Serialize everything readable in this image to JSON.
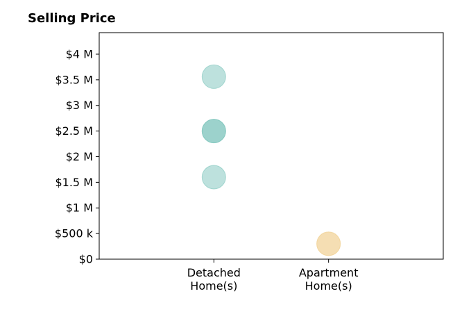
{
  "chart_data": {
    "type": "scatter",
    "title": "Selling Price",
    "xlabel": "",
    "ylabel": "",
    "categories": [
      [
        "Detached",
        "Home(s)"
      ],
      [
        "Apartment",
        "Home(s)"
      ]
    ],
    "y_ticks": [
      {
        "value": 0,
        "label": "$0"
      },
      {
        "value": 500000,
        "label": "$500 k"
      },
      {
        "value": 1000000,
        "label": "$1 M"
      },
      {
        "value": 1500000,
        "label": "$1.5 M"
      },
      {
        "value": 2000000,
        "label": "$2 M"
      },
      {
        "value": 2500000,
        "label": "$2.5 M"
      },
      {
        "value": 3000000,
        "label": "$3 M"
      },
      {
        "value": 3500000,
        "label": "$3.5 M"
      },
      {
        "value": 4000000,
        "label": "$4 M"
      }
    ],
    "ylim": [
      0,
      4420000
    ],
    "x_range": [
      -1,
      2
    ],
    "grid": false,
    "series": [
      {
        "category": [
          "Detached",
          "Home(s)"
        ],
        "color": "#7cc4bb",
        "values": [
          3560000,
          2500000,
          2500000,
          1600000
        ]
      },
      {
        "category": [
          "Apartment",
          "Home(s)"
        ],
        "color": "#f2d49a",
        "values": [
          300000,
          300000
        ]
      }
    ]
  }
}
